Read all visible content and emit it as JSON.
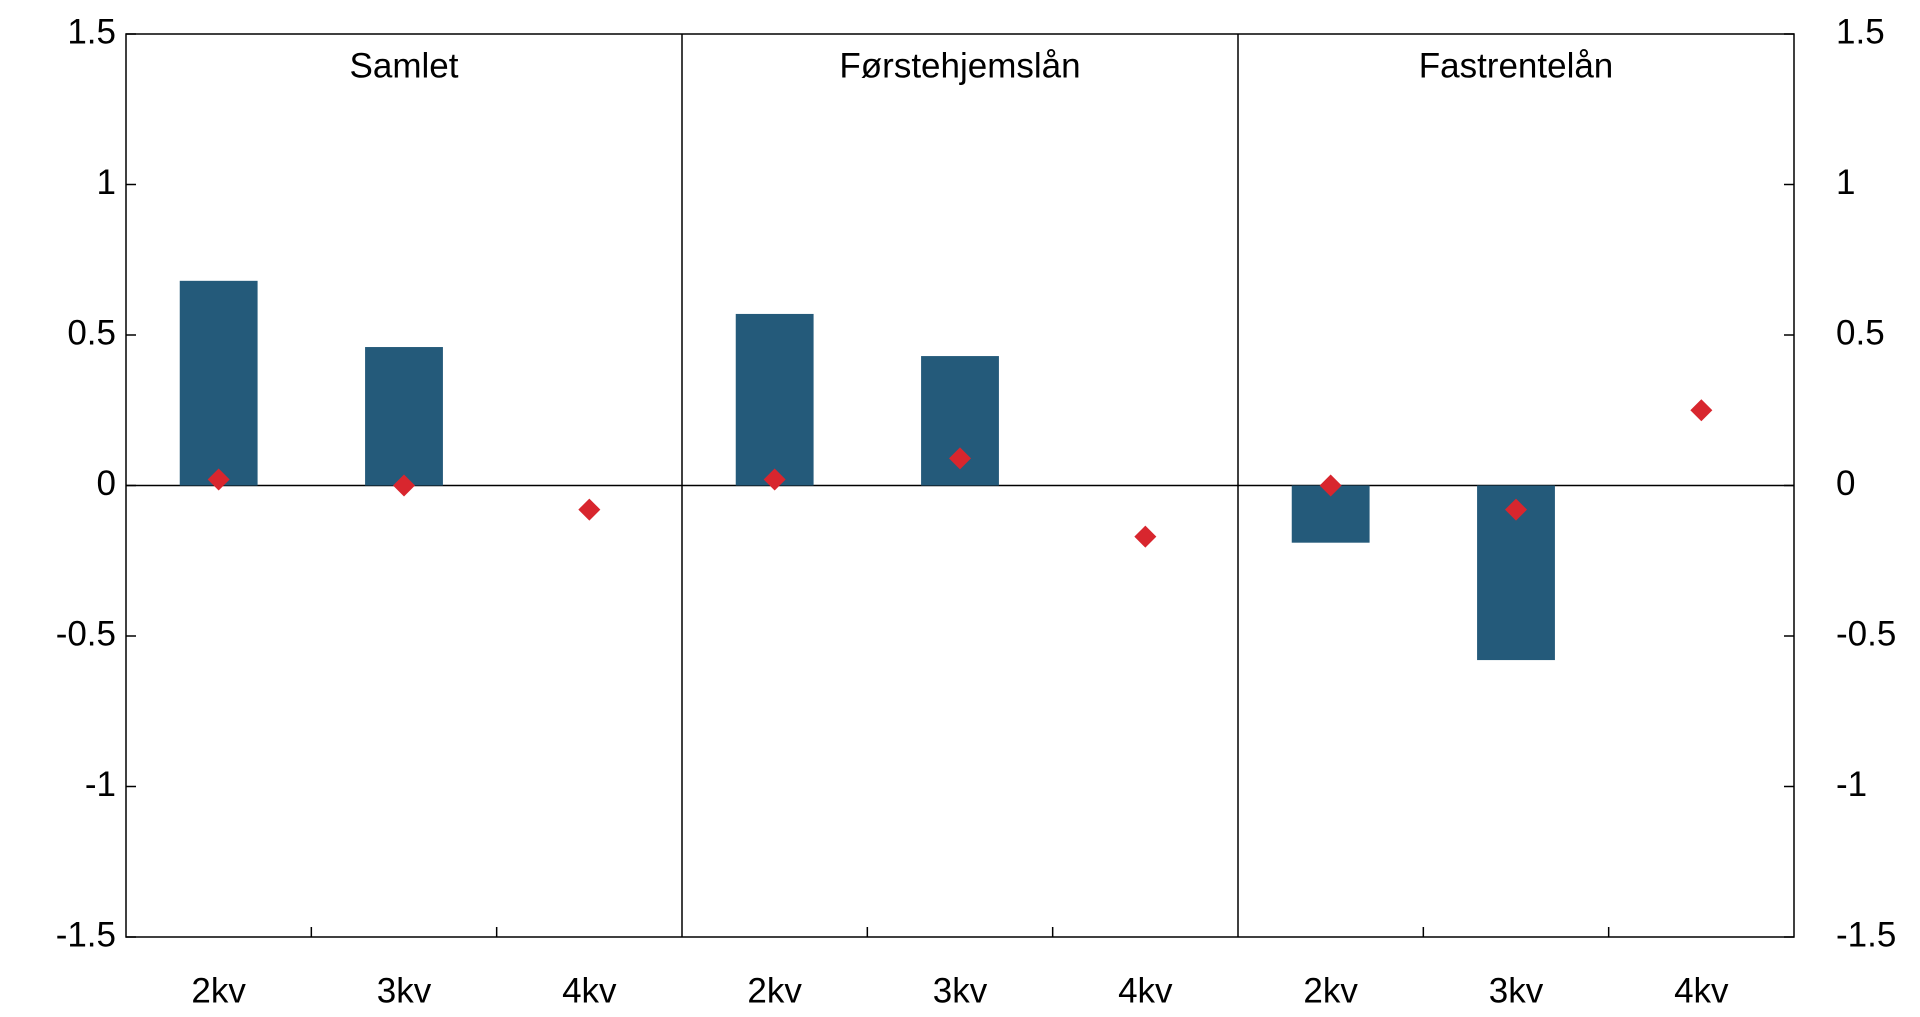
{
  "chart_data": [
    {
      "type": "bar",
      "title": "Samlet",
      "categories": [
        "2kv",
        "3kv",
        "4kv"
      ],
      "series": [
        {
          "color": "#245a7a",
          "values": [
            0.68,
            0.46,
            null
          ]
        },
        {
          "type": "scatter",
          "marker": "diamond",
          "color": "#d8262e",
          "values": [
            0.02,
            0.0,
            -0.08
          ]
        }
      ],
      "ylim": [
        -1.5,
        1.5
      ],
      "yticks": [
        -1.5,
        -1,
        -0.5,
        0,
        0.5,
        1,
        1.5
      ]
    },
    {
      "type": "bar",
      "title": "Førstehjemslån",
      "categories": [
        "2kv",
        "3kv",
        "4kv"
      ],
      "series": [
        {
          "color": "#245a7a",
          "values": [
            0.57,
            0.43,
            null
          ]
        },
        {
          "type": "scatter",
          "marker": "diamond",
          "color": "#d8262e",
          "values": [
            0.02,
            0.09,
            -0.17
          ]
        }
      ],
      "ylim": [
        -1.5,
        1.5
      ],
      "yticks": [
        -1.5,
        -1,
        -0.5,
        0,
        0.5,
        1,
        1.5
      ]
    },
    {
      "type": "bar",
      "title": "Fastrentelån",
      "categories": [
        "2kv",
        "3kv",
        "4kv"
      ],
      "series": [
        {
          "color": "#245a7a",
          "values": [
            -0.19,
            -0.58,
            null
          ]
        },
        {
          "type": "scatter",
          "marker": "diamond",
          "color": "#d8262e",
          "values": [
            0.0,
            -0.08,
            0.25
          ]
        }
      ],
      "ylim": [
        -1.5,
        1.5
      ],
      "yticks": [
        -1.5,
        -1,
        -0.5,
        0,
        0.5,
        1,
        1.5
      ]
    }
  ]
}
